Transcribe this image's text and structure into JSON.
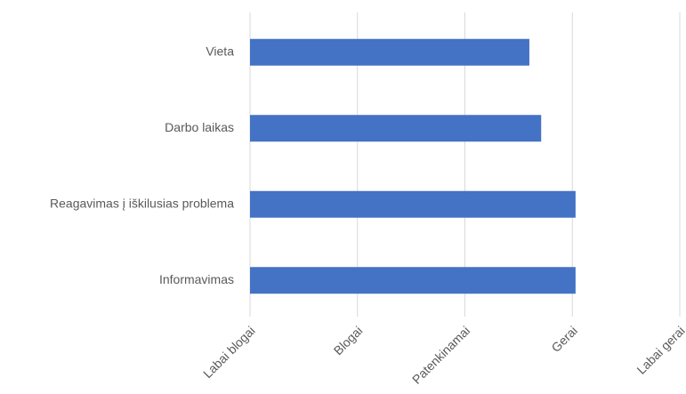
{
  "chart_data": {
    "type": "bar",
    "orientation": "horizontal",
    "categories": [
      "Vieta",
      "Darbo laikas",
      "Reagavimas į iškilusias problema",
      "Informavimas"
    ],
    "values": [
      3.6,
      3.71,
      4.03,
      4.03
    ],
    "color": "#4472c4",
    "xlim": [
      1,
      5
    ],
    "xticks": [
      {
        "value": 1,
        "label": "Labai blogai"
      },
      {
        "value": 2,
        "label": "Blogai"
      },
      {
        "value": 3,
        "label": "Patenkinamai"
      },
      {
        "value": 4,
        "label": "Gerai"
      },
      {
        "value": 5,
        "label": "Labai gerai"
      }
    ],
    "grid": true
  }
}
